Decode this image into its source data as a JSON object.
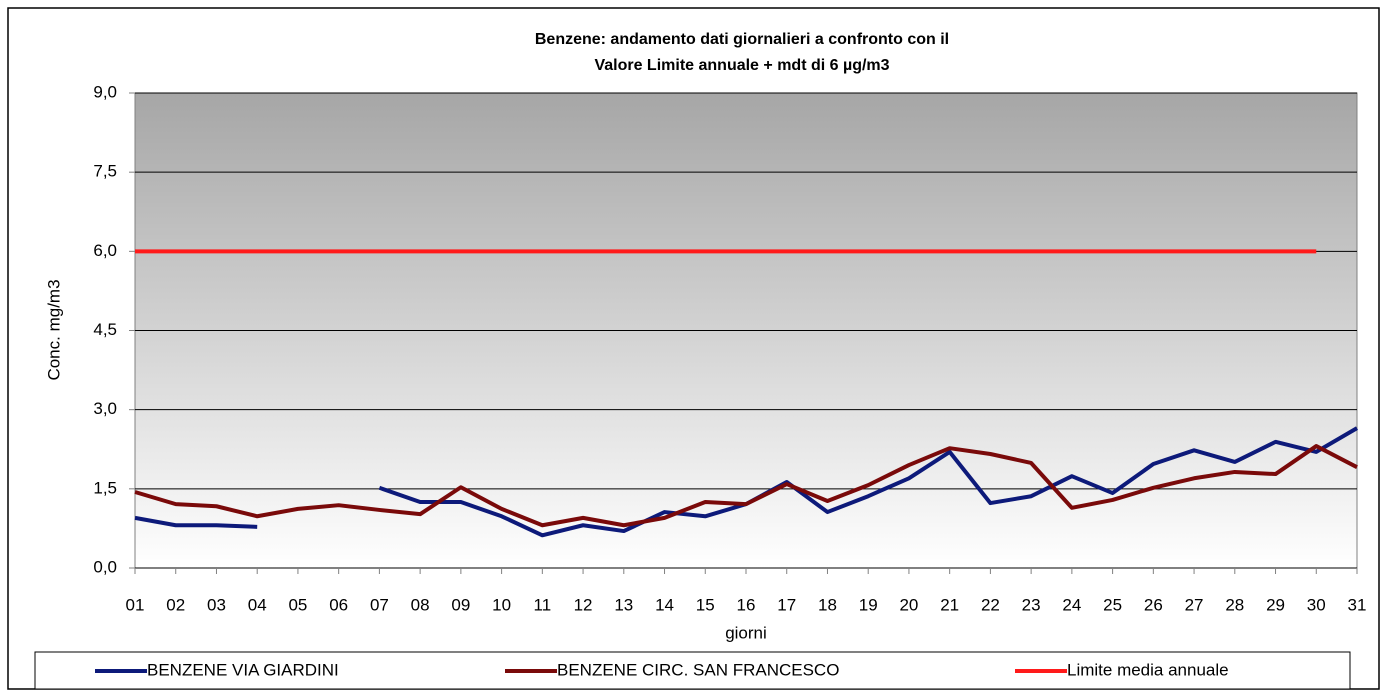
{
  "chart_data": {
    "type": "line",
    "title": [
      "Benzene: andamento dati giornalieri a confronto con il",
      "Valore Limite annuale + mdt  di 6 µg/m3"
    ],
    "x_label": "giorni",
    "y_label": "Conc. mg/m3",
    "categories": [
      "01",
      "02",
      "03",
      "04",
      "05",
      "06",
      "07",
      "08",
      "09",
      "10",
      "11",
      "12",
      "13",
      "14",
      "15",
      "16",
      "17",
      "18",
      "19",
      "20",
      "21",
      "22",
      "23",
      "24",
      "25",
      "26",
      "27",
      "28",
      "29",
      "30",
      "31"
    ],
    "series": [
      {
        "name": "BENZENE VIA GIARDINI",
        "color": "#0d1a7a",
        "values": [
          0.95,
          0.81,
          0.81,
          0.78,
          null,
          null,
          1.52,
          1.25,
          1.25,
          0.98,
          0.62,
          0.81,
          0.7,
          1.06,
          0.98,
          1.21,
          1.63,
          1.06,
          1.36,
          1.7,
          2.2,
          1.23,
          1.36,
          1.74,
          1.42,
          1.97,
          2.23,
          2.01,
          2.39,
          2.2,
          2.65
        ]
      },
      {
        "name": "BENZENE CIRC. SAN FRANCESCO",
        "color": "#7a0a0a",
        "values": [
          1.44,
          1.21,
          1.17,
          0.98,
          1.12,
          1.19,
          1.1,
          1.02,
          1.53,
          1.12,
          0.81,
          0.95,
          0.81,
          0.95,
          1.25,
          1.21,
          1.59,
          1.27,
          1.57,
          1.95,
          2.27,
          2.16,
          1.99,
          1.14,
          1.29,
          1.52,
          1.7,
          1.82,
          1.78,
          2.31,
          1.91
        ]
      },
      {
        "name": "Limite media annuale",
        "color": "#ff1a1a",
        "values": [
          6,
          6,
          6,
          6,
          6,
          6,
          6,
          6,
          6,
          6,
          6,
          6,
          6,
          6,
          6,
          6,
          6,
          6,
          6,
          6,
          6,
          6,
          6,
          6,
          6,
          6,
          6,
          6,
          6,
          6,
          null
        ]
      }
    ],
    "ylim": [
      0,
      9
    ],
    "yticks": [
      {
        "value": 0,
        "label": "0,0"
      },
      {
        "value": 1.5,
        "label": "1,5"
      },
      {
        "value": 3,
        "label": "3,0"
      },
      {
        "value": 4.5,
        "label": "4,5"
      },
      {
        "value": 6,
        "label": "6,0"
      },
      {
        "value": 7.5,
        "label": "7,5"
      },
      {
        "value": 9,
        "label": "9,0"
      }
    ],
    "grid": true,
    "legend": "bottom"
  }
}
